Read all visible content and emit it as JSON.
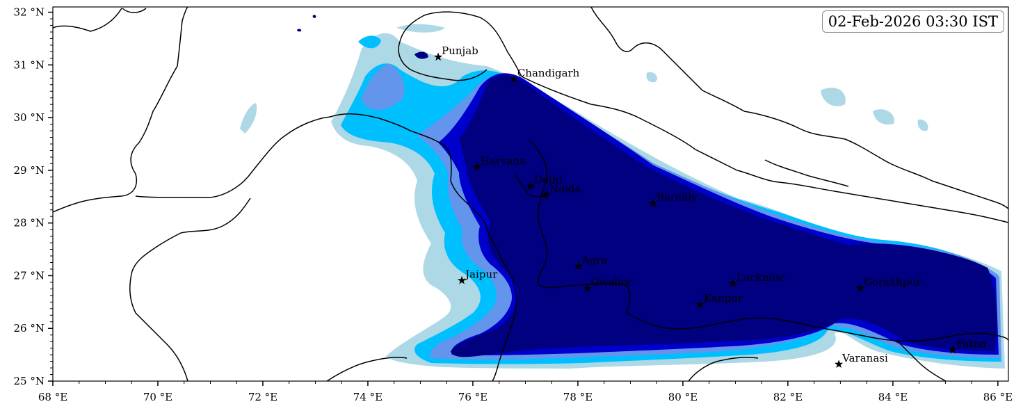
{
  "map": {
    "timestamp": "02-Feb-2026 03:30 IST",
    "x_ticks": [
      "68 °E",
      "70 °E",
      "72 °E",
      "74 °E",
      "76 °E",
      "78 °E",
      "80 °E",
      "82 °E",
      "84 °E",
      "86 °E"
    ],
    "y_ticks": [
      "32 °N",
      "31 °N",
      "30 °N",
      "29 °N",
      "28 °N",
      "27 °N",
      "26 °N",
      "25 °N"
    ],
    "cities": [
      {
        "name": "Punjab",
        "lon": 75.34,
        "lat": 31.15
      },
      {
        "name": "Chandigarh",
        "lon": 76.78,
        "lat": 30.73
      },
      {
        "name": "Haryana",
        "lon": 76.08,
        "lat": 29.06
      },
      {
        "name": "Delhi",
        "lon": 77.1,
        "lat": 28.7
      },
      {
        "name": "Noida",
        "lon": 77.39,
        "lat": 28.53
      },
      {
        "name": "Bareilly",
        "lon": 79.43,
        "lat": 28.37
      },
      {
        "name": "Agra",
        "lon": 78.01,
        "lat": 27.18
      },
      {
        "name": "Jaipur",
        "lon": 75.79,
        "lat": 26.91
      },
      {
        "name": "Gwalior",
        "lon": 78.18,
        "lat": 26.76
      },
      {
        "name": "Lucknow",
        "lon": 80.95,
        "lat": 26.85
      },
      {
        "name": "Kanpur",
        "lon": 80.33,
        "lat": 26.45
      },
      {
        "name": "Gorakhpur",
        "lon": 83.38,
        "lat": 26.76
      },
      {
        "name": "Varanasi",
        "lon": 82.97,
        "lat": 25.32
      },
      {
        "name": "Patna",
        "lon": 85.14,
        "lat": 25.59
      }
    ],
    "colors": {
      "level1": "#add8e6",
      "level2": "#00bfff",
      "level3": "#6495ed",
      "level4": "#0000cd",
      "level5": "#000080"
    }
  }
}
